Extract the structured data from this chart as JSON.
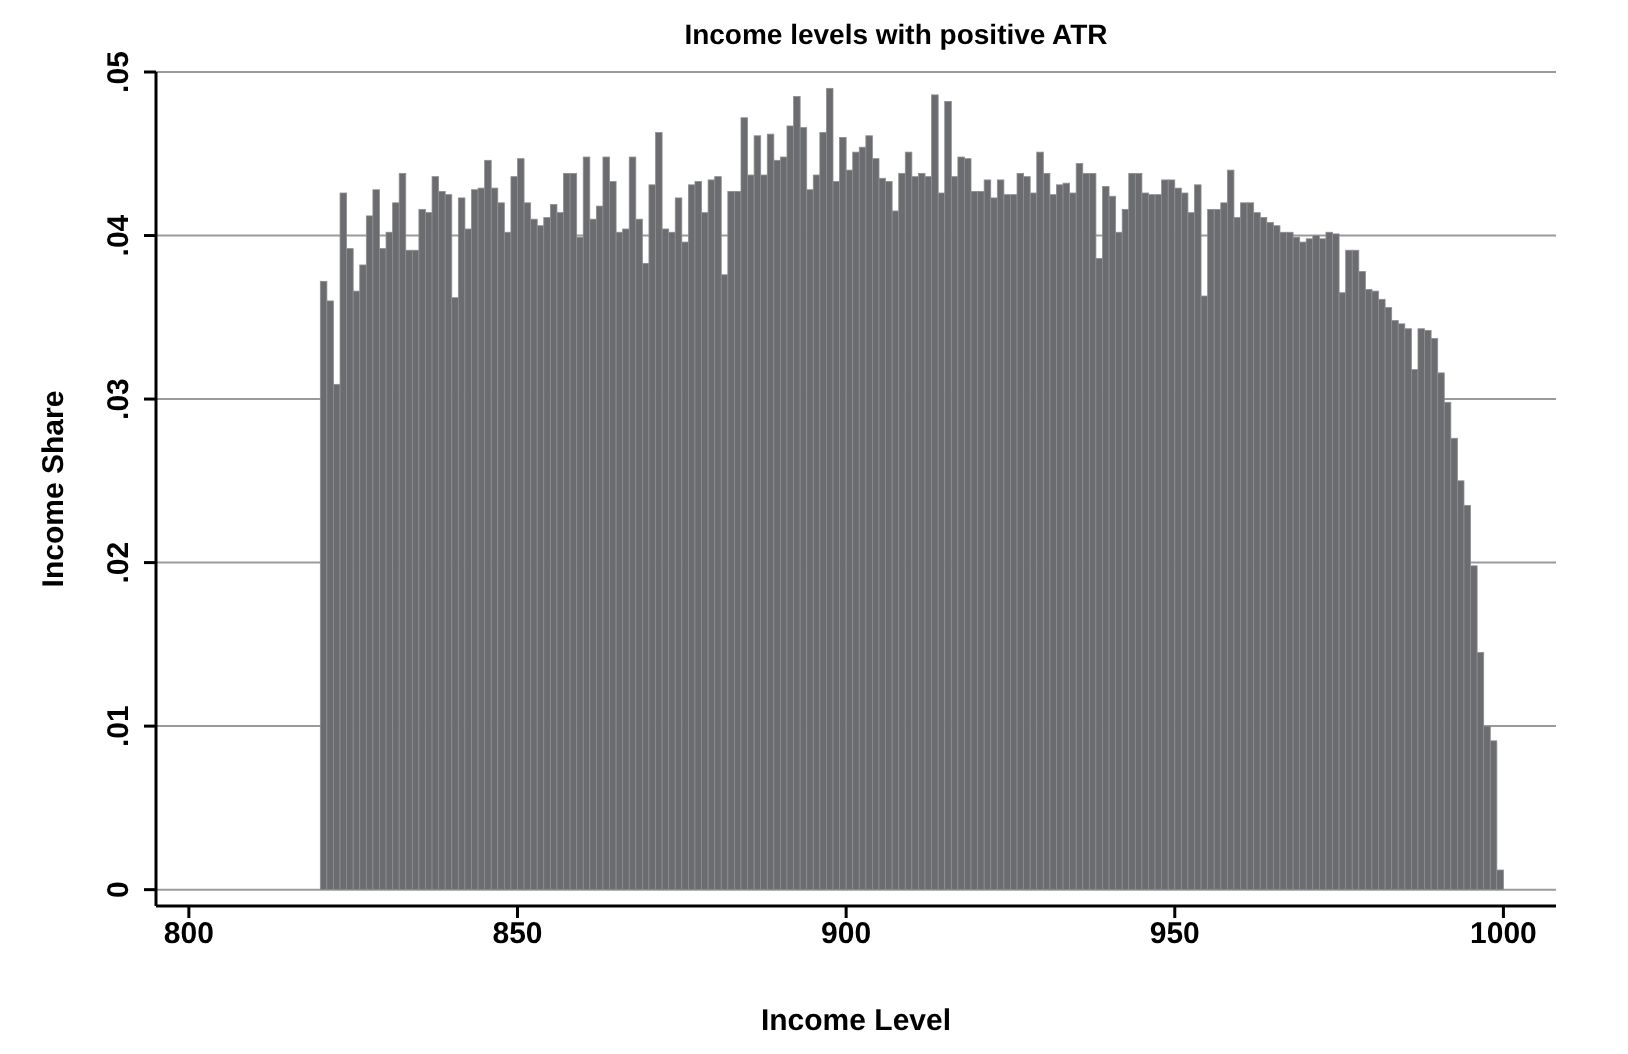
{
  "chart_data": {
    "type": "histogram",
    "title": "Income levels with positive ATR",
    "xlabel": "Income Level",
    "ylabel": "Income Share",
    "bins": [
      820,
      821,
      822,
      823,
      824,
      825,
      826,
      827,
      828,
      829,
      830,
      831,
      832,
      833,
      834,
      835,
      836,
      837,
      838,
      839,
      840,
      841,
      842,
      843,
      844,
      845,
      846,
      847,
      848,
      849,
      850,
      851,
      852,
      853,
      854,
      855,
      856,
      857,
      858,
      859,
      860,
      861,
      862,
      863,
      864,
      865,
      866,
      867,
      868,
      869,
      870,
      871,
      872,
      873,
      874,
      875,
      876,
      877,
      878,
      879,
      880,
      881,
      882,
      883,
      884,
      885,
      886,
      887,
      888,
      889,
      890,
      891,
      892,
      893,
      894,
      895,
      896,
      897,
      898,
      899,
      900,
      901,
      902,
      903,
      904,
      905,
      906,
      907,
      908,
      909,
      910,
      911,
      912,
      913,
      914,
      915,
      916,
      917,
      918,
      919,
      920,
      921,
      922,
      923,
      924,
      925,
      926,
      927,
      928,
      929,
      930,
      931,
      932,
      933,
      934,
      935,
      936,
      937,
      938,
      939,
      940,
      941,
      942,
      943,
      944,
      945,
      946,
      947,
      948,
      949,
      950,
      951,
      952,
      953,
      954,
      955,
      956,
      957,
      958,
      959,
      960,
      961,
      962,
      963,
      964,
      965,
      966,
      967,
      968,
      969,
      970,
      971,
      972,
      973,
      974,
      975,
      976,
      977,
      978,
      979,
      980,
      981,
      982,
      983,
      984,
      985,
      986,
      987,
      988,
      989,
      990,
      991,
      992,
      993,
      994,
      995,
      996,
      997,
      998,
      999,
      1000
    ],
    "values": [
      0.0372,
      0.036,
      0.0309,
      0.0426,
      0.0392,
      0.0366,
      0.0382,
      0.0412,
      0.0428,
      0.0392,
      0.0402,
      0.042,
      0.0438,
      0.0391,
      0.0391,
      0.0416,
      0.0414,
      0.0436,
      0.0427,
      0.0425,
      0.0362,
      0.0423,
      0.0404,
      0.0428,
      0.0429,
      0.0446,
      0.0429,
      0.042,
      0.0402,
      0.0436,
      0.0447,
      0.042,
      0.041,
      0.0406,
      0.0411,
      0.0419,
      0.0414,
      0.0438,
      0.0438,
      0.0399,
      0.0448,
      0.041,
      0.0418,
      0.0448,
      0.0433,
      0.0402,
      0.0404,
      0.0448,
      0.041,
      0.0383,
      0.0431,
      0.0463,
      0.0404,
      0.0402,
      0.0423,
      0.0396,
      0.0431,
      0.0433,
      0.0414,
      0.0434,
      0.0436,
      0.0376,
      0.0427,
      0.0427,
      0.0472,
      0.0437,
      0.0461,
      0.0437,
      0.0462,
      0.0446,
      0.0448,
      0.0467,
      0.0485,
      0.0466,
      0.0428,
      0.0437,
      0.0463,
      0.049,
      0.0433,
      0.046,
      0.044,
      0.0451,
      0.0454,
      0.0461,
      0.0447,
      0.0435,
      0.0433,
      0.0415,
      0.0438,
      0.0451,
      0.0436,
      0.0438,
      0.0436,
      0.0486,
      0.0426,
      0.0482,
      0.0436,
      0.0448,
      0.0447,
      0.0427,
      0.0427,
      0.0434,
      0.0423,
      0.0434,
      0.0425,
      0.0425,
      0.0438,
      0.0436,
      0.0426,
      0.0451,
      0.0438,
      0.0425,
      0.0431,
      0.0432,
      0.0426,
      0.0444,
      0.0438,
      0.0438,
      0.0386,
      0.043,
      0.0424,
      0.0402,
      0.0416,
      0.0438,
      0.0438,
      0.0426,
      0.0425,
      0.0425,
      0.0434,
      0.0434,
      0.0429,
      0.0426,
      0.0414,
      0.0431,
      0.0363,
      0.0416,
      0.0416,
      0.042,
      0.044,
      0.0411,
      0.042,
      0.042,
      0.0414,
      0.0411,
      0.0408,
      0.0406,
      0.0402,
      0.0402,
      0.0399,
      0.0396,
      0.0398,
      0.04,
      0.0398,
      0.0402,
      0.0401,
      0.0365,
      0.0391,
      0.0391,
      0.0378,
      0.0367,
      0.0366,
      0.0361,
      0.0356,
      0.0348,
      0.0346,
      0.0343,
      0.0318,
      0.0343,
      0.0342,
      0.0337,
      0.0316,
      0.0298,
      0.0276,
      0.025,
      0.0235,
      0.0198,
      0.0145,
      0.01,
      0.0091,
      0.0012
    ],
    "color": "#6b6c70",
    "xlim": [
      795,
      1008
    ],
    "xticks": [
      800,
      850,
      900,
      950,
      1000
    ],
    "ylim": [
      -0.001,
      0.05
    ],
    "yticks": [
      0,
      {
        "value": 0.01,
        "label": ".01"
      },
      {
        "value": 0.02,
        "label": ".02"
      },
      {
        "value": 0.03,
        "label": ".03"
      },
      {
        "value": 0.04,
        "label": ".04"
      },
      {
        "value": 0.05,
        "label": ".05"
      }
    ],
    "grid": "y"
  }
}
